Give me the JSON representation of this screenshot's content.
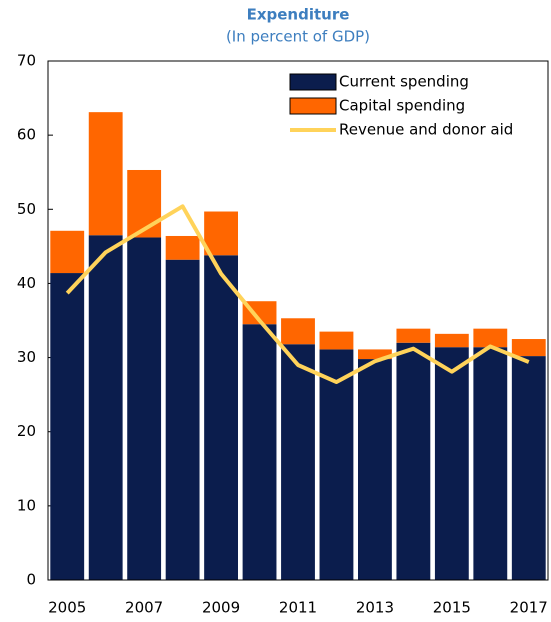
{
  "chart_data": {
    "type": "stacked_bar_line",
    "title": "Expenditure",
    "subtitle": "(In percent of GDP)",
    "categories": [
      "2005",
      null,
      "2007",
      null,
      "2009",
      null,
      "2011",
      null,
      "2013",
      null,
      "2015",
      null,
      "2017"
    ],
    "series": [
      {
        "name": "Current spending",
        "color": "#0b1d4d",
        "kind": "bar",
        "values": [
          41.4,
          46.5,
          46.2,
          43.2,
          43.8,
          34.5,
          31.8,
          31.1,
          29.8,
          32.0,
          31.4,
          31.4,
          30.2
        ]
      },
      {
        "name": "Capital spending",
        "color": "#ff6600",
        "kind": "bar",
        "values": [
          5.7,
          16.6,
          9.1,
          3.2,
          5.9,
          3.1,
          3.5,
          2.4,
          1.3,
          1.9,
          1.8,
          2.5,
          2.3
        ]
      },
      {
        "name": "Revenue and donor aid",
        "color": "#ffd35a",
        "kind": "line",
        "values": [
          38.7,
          44.2,
          47.3,
          50.4,
          41.3,
          35.0,
          29.0,
          26.7,
          29.5,
          31.2,
          28.1,
          31.5,
          29.4
        ]
      }
    ],
    "ylim": [
      0,
      70
    ],
    "yticks": [
      0,
      10,
      20,
      30,
      40,
      50,
      60,
      70
    ],
    "grid": false,
    "legend": "top-right"
  }
}
